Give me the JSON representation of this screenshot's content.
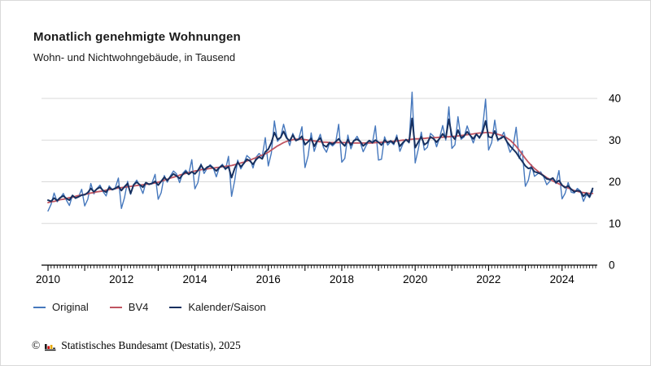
{
  "header": {
    "title": "Monatlich genehmigte Wohnungen",
    "subtitle": "Wohn- und Nichtwohngebäude, in Tausend"
  },
  "footer": {
    "copyright_symbol": "©",
    "source_text": "Statistisches Bundesamt (Destatis), 2025",
    "logo_colors": [
      "#1a1a1a",
      "#cc0000",
      "#e8a800"
    ]
  },
  "colors": {
    "original": "#4678bd",
    "bv4": "#c05561",
    "kalender_saison": "#17305f",
    "gridline": "#d9d9d9",
    "axis": "#000000"
  },
  "chart_data": {
    "type": "line",
    "title": "Monatlich genehmigte Wohnungen",
    "subtitle": "Wohn- und Nichtwohngebäude, in Tausend",
    "unit": "Tausend",
    "x_start": "2010-01",
    "x_end": "2024-11",
    "x_tick_labels": [
      "2010",
      "2012",
      "2014",
      "2016",
      "2018",
      "2020",
      "2022",
      "2024"
    ],
    "y_ticks": [
      0,
      10,
      20,
      30,
      40
    ],
    "ylim": [
      0,
      42
    ],
    "grid": "horizontal",
    "legend_position": "bottom",
    "series": [
      {
        "name": "Original",
        "color": "#4678bd",
        "width": 1.4,
        "values": [
          13.0,
          14.6,
          17.3,
          15.2,
          16.1,
          17.2,
          15.6,
          14.3,
          16.8,
          16.0,
          16.4,
          18.2,
          14.2,
          15.8,
          19.6,
          17.1,
          18.4,
          19.2,
          17.6,
          16.6,
          19.0,
          18.1,
          18.6,
          20.9,
          13.6,
          16.2,
          20.1,
          17.0,
          19.3,
          20.4,
          19.0,
          17.2,
          19.8,
          19.4,
          19.7,
          21.8,
          15.8,
          17.4,
          21.5,
          19.9,
          21.4,
          22.6,
          21.9,
          19.8,
          22.0,
          22.8,
          21.9,
          25.3,
          18.3,
          19.8,
          24.3,
          22.0,
          23.2,
          24.1,
          23.4,
          21.2,
          23.5,
          24.2,
          22.9,
          26.1,
          16.5,
          20.3,
          25.2,
          23.1,
          24.4,
          26.3,
          25.6,
          23.3,
          25.9,
          26.8,
          26.0,
          30.6,
          23.8,
          26.9,
          34.6,
          29.7,
          30.6,
          33.8,
          30.9,
          28.7,
          31.6,
          29.9,
          30.4,
          33.2,
          23.4,
          26.2,
          31.7,
          27.3,
          29.6,
          31.4,
          28.3,
          27.1,
          29.2,
          28.6,
          29.3,
          33.8,
          24.7,
          25.6,
          31.2,
          27.9,
          29.8,
          30.9,
          29.6,
          27.2,
          28.7,
          29.8,
          29.2,
          33.4,
          25.2,
          25.4,
          30.8,
          28.8,
          29.6,
          28.9,
          31.2,
          27.3,
          29.1,
          30.2,
          29.3,
          41.5,
          24.5,
          27.8,
          31.9,
          27.6,
          28.3,
          31.6,
          30.9,
          28.4,
          30.6,
          33.5,
          30.0,
          38.0,
          28.0,
          28.9,
          35.6,
          30.2,
          30.8,
          33.4,
          31.2,
          29.3,
          31.5,
          30.4,
          32.6,
          39.8,
          27.6,
          29.4,
          34.8,
          29.8,
          30.6,
          31.9,
          29.4,
          27.1,
          28.3,
          33.1,
          25.6,
          27.4,
          18.9,
          20.4,
          24.1,
          21.3,
          21.9,
          22.4,
          21.2,
          19.3,
          20.1,
          20.8,
          19.6,
          22.7,
          15.9,
          17.2,
          19.8,
          17.5,
          17.3,
          18.4,
          17.8,
          15.3,
          17.0,
          16.2,
          17.8
        ]
      },
      {
        "name": "BV4",
        "color": "#c05561",
        "width": 1.8,
        "values": [
          15.0,
          15.2,
          15.3,
          15.5,
          15.7,
          15.8,
          16.0,
          16.2,
          16.3,
          16.5,
          16.7,
          16.8,
          17.0,
          17.1,
          17.3,
          17.4,
          17.6,
          17.7,
          17.8,
          18.0,
          18.1,
          18.2,
          18.4,
          18.5,
          18.6,
          18.7,
          18.8,
          18.9,
          19.0,
          19.1,
          19.2,
          19.3,
          19.4,
          19.5,
          19.6,
          19.7,
          19.9,
          20.1,
          20.4,
          20.6,
          20.9,
          21.1,
          21.3,
          21.6,
          21.8,
          22.0,
          22.2,
          22.4,
          22.6,
          22.7,
          22.9,
          23.0,
          23.1,
          23.2,
          23.3,
          23.4,
          23.5,
          23.6,
          23.7,
          23.8,
          23.9,
          24.1,
          24.3,
          24.5,
          24.7,
          25.0,
          25.2,
          25.5,
          25.8,
          26.1,
          26.4,
          26.7,
          27.1,
          27.6,
          28.1,
          28.6,
          29.0,
          29.4,
          29.7,
          29.9,
          30.1,
          30.2,
          30.2,
          30.2,
          30.1,
          30.0,
          29.9,
          29.8,
          29.7,
          29.6,
          29.5,
          29.5,
          29.4,
          29.4,
          29.4,
          29.4,
          29.4,
          29.4,
          29.4,
          29.3,
          29.3,
          29.3,
          29.3,
          29.3,
          29.3,
          29.3,
          29.3,
          29.4,
          29.4,
          29.5,
          29.5,
          29.6,
          29.7,
          29.7,
          29.8,
          29.9,
          30.0,
          30.0,
          30.1,
          30.2,
          30.3,
          30.3,
          30.4,
          30.4,
          30.5,
          30.5,
          30.6,
          30.6,
          30.7,
          30.7,
          30.8,
          30.8,
          30.9,
          30.9,
          31.0,
          31.1,
          31.2,
          31.3,
          31.4,
          31.5,
          31.6,
          31.7,
          31.7,
          31.8,
          31.8,
          31.7,
          31.6,
          31.4,
          31.2,
          30.9,
          30.5,
          30.0,
          29.3,
          28.5,
          27.6,
          26.6,
          25.6,
          24.7,
          23.9,
          23.2,
          22.6,
          22.0,
          21.5,
          21.0,
          20.6,
          20.2,
          19.8,
          19.5,
          19.1,
          18.8,
          18.5,
          18.2,
          17.9,
          17.7,
          17.5,
          17.4,
          17.3,
          17.2,
          17.2
        ]
      },
      {
        "name": "Kalender/Saison",
        "color": "#17305f",
        "width": 2.0,
        "values": [
          15.6,
          15.3,
          16.1,
          15.5,
          16.2,
          16.6,
          16.0,
          15.6,
          16.7,
          16.1,
          16.4,
          16.8,
          16.9,
          17.4,
          18.4,
          17.6,
          18.3,
          18.7,
          17.9,
          17.5,
          18.6,
          18.1,
          18.4,
          18.9,
          17.9,
          18.8,
          19.6,
          17.2,
          19.3,
          19.9,
          19.3,
          18.7,
          19.8,
          19.4,
          19.6,
          20.1,
          19.2,
          20.1,
          21.1,
          20.3,
          21.2,
          21.9,
          21.4,
          20.8,
          21.7,
          22.4,
          21.8,
          22.4,
          21.9,
          22.7,
          24.0,
          22.8,
          23.5,
          23.8,
          23.3,
          22.6,
          23.4,
          23.9,
          23.1,
          23.6,
          21.0,
          23.2,
          24.7,
          23.6,
          24.4,
          25.4,
          25.0,
          24.2,
          25.3,
          26.0,
          25.5,
          27.2,
          27.8,
          29.4,
          31.8,
          30.2,
          30.6,
          32.1,
          30.5,
          29.8,
          31.2,
          29.9,
          30.2,
          30.9,
          28.9,
          29.6,
          30.4,
          28.5,
          29.8,
          30.5,
          28.8,
          28.4,
          29.4,
          29.0,
          29.6,
          30.3,
          29.3,
          28.6,
          30.1,
          28.8,
          29.9,
          30.2,
          29.7,
          28.6,
          29.2,
          29.9,
          29.4,
          30.0,
          29.5,
          28.8,
          30.0,
          29.4,
          29.8,
          29.2,
          30.6,
          28.5,
          29.4,
          30.1,
          29.5,
          35.2,
          28.2,
          29.5,
          30.8,
          28.9,
          29.4,
          30.8,
          30.3,
          29.5,
          30.4,
          31.5,
          30.5,
          35.0,
          31.0,
          30.2,
          32.4,
          30.6,
          31.0,
          32.0,
          31.1,
          30.3,
          31.4,
          30.6,
          31.8,
          34.6,
          30.8,
          30.6,
          32.2,
          30.2,
          30.4,
          30.9,
          29.6,
          28.6,
          27.8,
          27.0,
          25.9,
          24.9,
          23.8,
          23.2,
          23.4,
          22.4,
          22.2,
          21.9,
          21.4,
          20.7,
          20.5,
          20.9,
          19.8,
          20.3,
          19.2,
          18.6,
          19.0,
          18.2,
          17.6,
          17.9,
          17.7,
          16.5,
          17.3,
          16.4,
          18.4
        ]
      }
    ]
  }
}
